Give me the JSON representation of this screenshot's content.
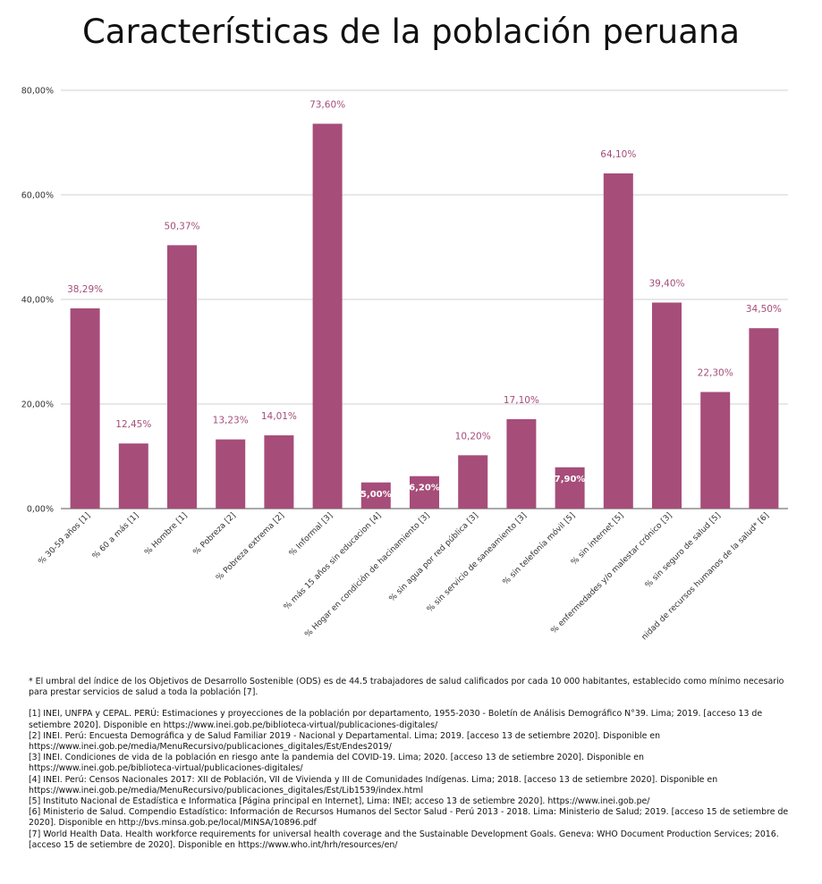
{
  "chart_data": {
    "type": "bar",
    "title": "Características de la población peruana",
    "categories": [
      "% 30-59 años [1]",
      "% 60 a más [1]",
      "% Hombre [1]",
      "% Pobreza [2]",
      "% Pobreza extrema [2]",
      "% Informal [3]",
      "% más 15 años sin educacion [4]",
      "% Hogar en condición de hacinamiento [3]",
      "% sin agua por red pública [3]",
      "% sin servicio de saneamiento [3]",
      "% sin telefonía móvil [5]",
      "% sin internet [5]",
      "% enfermedades y/o malestar crónico [3]",
      "% sin seguro de salud [5]",
      "nidad de recursos humanos de la salud* [6]"
    ],
    "values": [
      38.29,
      12.45,
      50.37,
      13.23,
      14.01,
      73.6,
      5.0,
      6.2,
      10.2,
      17.1,
      7.9,
      64.1,
      39.4,
      22.3,
      34.5
    ],
    "value_labels": [
      "38,29%",
      "12,45%",
      "50,37%",
      "13,23%",
      "14,01%",
      "73,60%",
      "5,00%",
      "6,20%",
      "10,20%",
      "17,10%",
      "7,90%",
      "64,10%",
      "39,40%",
      "22,30%",
      "34,50%"
    ],
    "labels_inside": [
      false,
      false,
      false,
      false,
      false,
      false,
      true,
      true,
      false,
      false,
      true,
      false,
      false,
      false,
      false
    ],
    "y_ticks": [
      0,
      20,
      40,
      60,
      80
    ],
    "y_tick_labels": [
      "0,00%",
      "20,00%",
      "40,00%",
      "60,00%",
      "80,00%"
    ],
    "ylim": [
      0,
      80
    ],
    "xlabel": "",
    "ylabel": "",
    "grid": true,
    "bar_color": "#a64d79",
    "label_color": "#a64d79"
  },
  "footnote": "* El umbral del índice de los Objetivos de Desarrollo Sostenible (ODS) es de 44.5 trabajadores de salud calificados por cada 10 000 habitantes, establecido como mínimo necesario para prestar servicios de salud a toda la población [7].",
  "references": [
    "[1] INEI, UNFPA y CEPAL. PERÚ: Estimaciones y proyecciones de la población por departamento, 1955-2030 - Boletín de Análisis Demográfico N°39. Lima; 2019. [acceso 13 de setiembre 2020]. Disponible en https://www.inei.gob.pe/biblioteca-virtual/publicaciones-digitales/",
    "[2] INEI. Perú: Encuesta Demográfica y de Salud Familiar 2019 - Nacional y Departamental. Lima; 2019. [acceso 13 de setiembre 2020]. Disponible en https://www.inei.gob.pe/media/MenuRecursivo/publicaciones_digitales/Est/Endes2019/",
    "[3] INEI. Condiciones de vida de la población en riesgo ante la pandemia del COVID-19. Lima; 2020. [acceso 13 de setiembre 2020]. Disponible en https://www.inei.gob.pe/biblioteca-virtual/publicaciones-digitales/",
    "[4] INEI. Perú: Censos Nacionales 2017: XII de Población, VII de Vivienda y III de Comunidades Indígenas. Lima; 2018. [acceso 13 de setiembre 2020]. Disponible en https://www.inei.gob.pe/media/MenuRecursivo/publicaciones_digitales/Est/Lib1539/index.html",
    "[5] Instituto Nacional de Estadística e Informatica [Página principal en Internet], Lima: INEI; acceso 13 de setiembre 2020]. https://www.inei.gob.pe/",
    "[6] Ministerio de Salud. Compendio Estadístico: Información de Recursos Humanos del Sector Salud - Perú 2013 - 2018. Lima: Ministerio de Salud; 2019. [acceso 15 de setiembre de 2020]. Disponible en http://bvs.minsa.gob.pe/local/MINSA/10896.pdf",
    "[7] World Health Data. Health workforce requirements for universal health coverage and the Sustainable Development Goals. Geneva: WHO Document Production Services; 2016. [acceso 15 de setiembre de 2020]. Disponible en https://www.who.int/hrh/resources/en/"
  ]
}
